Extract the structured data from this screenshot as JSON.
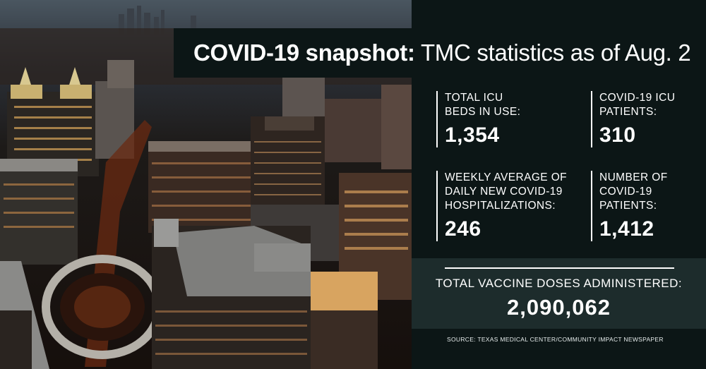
{
  "header": {
    "title_bold": "COVID-19 snapshot:",
    "title_rest": "TMC statistics as of Aug. 2"
  },
  "stats": [
    {
      "label": "Total ICU\nbeds in use:",
      "value": "1,354"
    },
    {
      "label": "COVID-19 ICU\npatients:",
      "value": "310"
    },
    {
      "label": "Weekly average of\ndaily new COVID-19\nhospitalizations:",
      "value": "246"
    },
    {
      "label": "Number of\nCOVID-19\npatients:",
      "value": "1,412"
    }
  ],
  "vaccine": {
    "label": "Total vaccine doses administered:",
    "value": "2,090,062"
  },
  "source": "SOURCE: TEXAS MEDICAL CENTER/COMMUNITY IMPACT NEWSPAPER",
  "colors": {
    "panel_bg": "#0c1616",
    "vaccine_bg": "#1d2c2c",
    "text": "#ffffff"
  }
}
